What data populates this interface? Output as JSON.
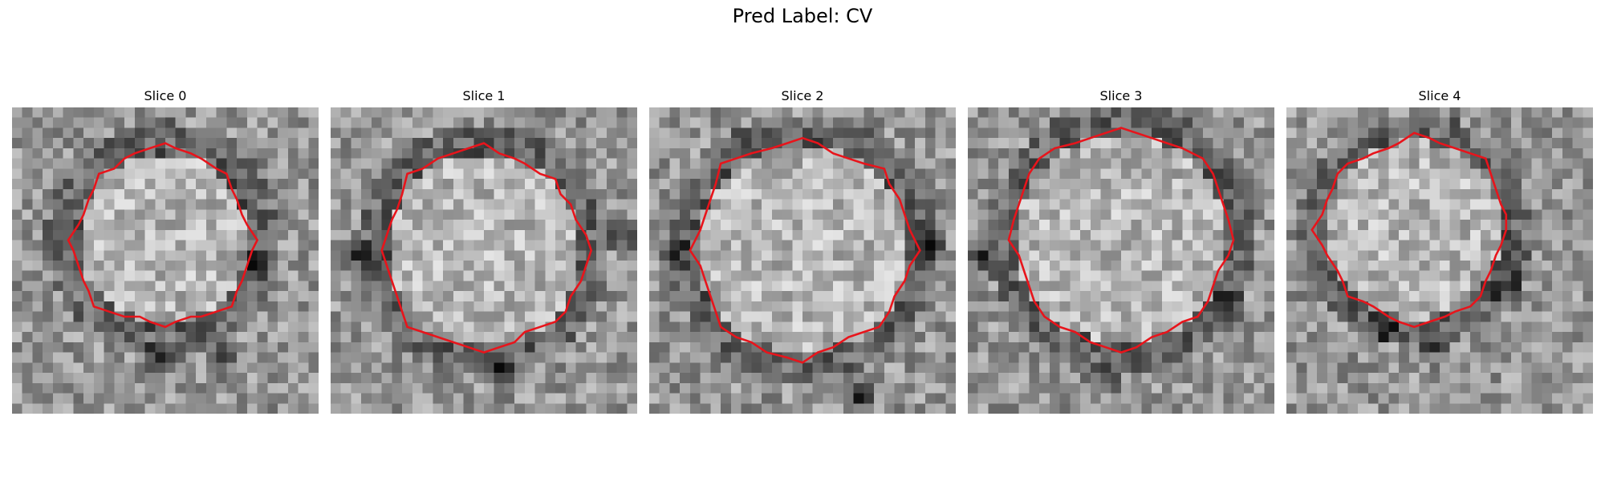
{
  "figure": {
    "title": "Pred Label: CV"
  },
  "panels": [
    {
      "title": "Slice 0",
      "contour_color": "#e8141b"
    },
    {
      "title": "Slice 1",
      "contour_color": "#e8141b"
    },
    {
      "title": "Slice 2",
      "contour_color": "#e8141b"
    },
    {
      "title": "Slice 3",
      "contour_color": "#e8141b"
    },
    {
      "title": "Slice 4",
      "contour_color": "#e8141b"
    }
  ],
  "image": {
    "colormap": "gray",
    "grid": "30x30"
  }
}
